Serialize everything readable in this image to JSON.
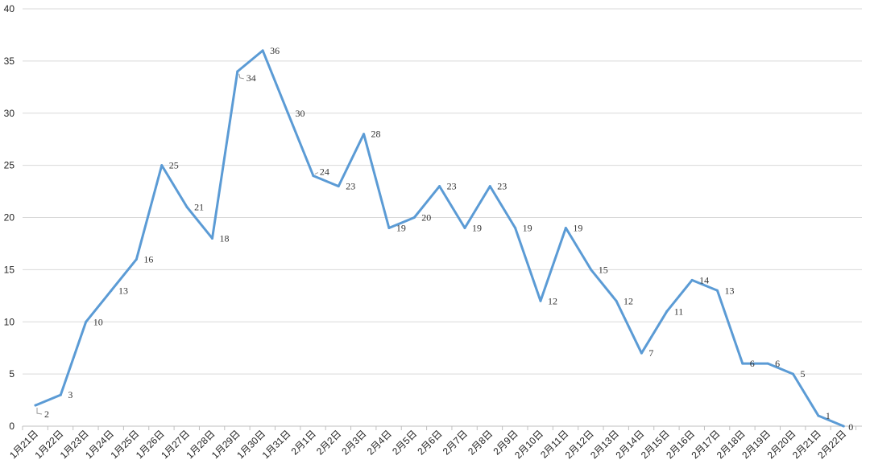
{
  "chart_data": {
    "type": "line",
    "title": "",
    "xlabel": "",
    "ylabel": "",
    "ylim": [
      0,
      40
    ],
    "yticks": [
      0,
      5,
      10,
      15,
      20,
      25,
      30,
      35,
      40
    ],
    "grid": true,
    "legend": "none",
    "line_color": "#5b9bd5",
    "categories": [
      "1月21日",
      "1月22日",
      "1月23日",
      "1月24日",
      "1月25日",
      "1月26日",
      "1月27日",
      "1月28日",
      "1月29日",
      "1月30日",
      "1月31日",
      "2月1日",
      "2月2日",
      "2月3日",
      "2月4日",
      "2月5日",
      "2月6日",
      "2月7日",
      "2月8日",
      "2月9日",
      "2月10日",
      "2月11日",
      "2月12日",
      "2月13日",
      "2月14日",
      "2月15日",
      "2月16日",
      "2月17日",
      "2月18日",
      "2月19日",
      "2月20日",
      "2月21日",
      "2月22日"
    ],
    "values": [
      2,
      3,
      10,
      13,
      16,
      25,
      21,
      18,
      34,
      36,
      30,
      24,
      23,
      28,
      19,
      20,
      23,
      19,
      23,
      19,
      12,
      19,
      15,
      12,
      7,
      11,
      14,
      13,
      6,
      6,
      5,
      1,
      0
    ]
  }
}
